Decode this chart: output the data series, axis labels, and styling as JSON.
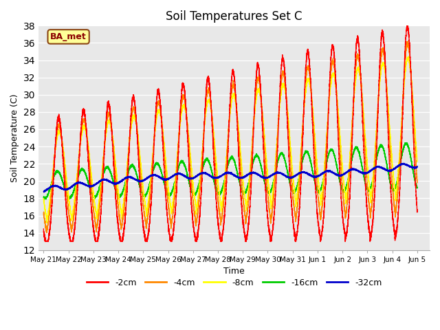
{
  "title": "Soil Temperatures Set C",
  "xlabel": "Time",
  "ylabel": "Soil Temperature (C)",
  "ylim": [
    12,
    38
  ],
  "yticks": [
    12,
    14,
    16,
    18,
    20,
    22,
    24,
    26,
    28,
    30,
    32,
    34,
    36,
    38
  ],
  "legend_labels": [
    "-2cm",
    "-4cm",
    "-8cm",
    "-16cm",
    "-32cm"
  ],
  "colors": [
    "#ff0000",
    "#ff8800",
    "#ffff00",
    "#00cc00",
    "#0000cc"
  ],
  "bg_color": "#e8e8e8",
  "annotation_text": "BA_met",
  "annotation_bg": "#ffff99",
  "annotation_border": "#8B4513",
  "tick_labels": [
    "May 21",
    "May 22",
    "May 23",
    "May 24",
    "May 25",
    "May 26",
    "May 27",
    "May 28",
    "May 29",
    "May 30",
    "May 31",
    "Jun 1",
    "Jun 2",
    "Jun 3",
    "Jun 4",
    "Jun 5"
  ]
}
